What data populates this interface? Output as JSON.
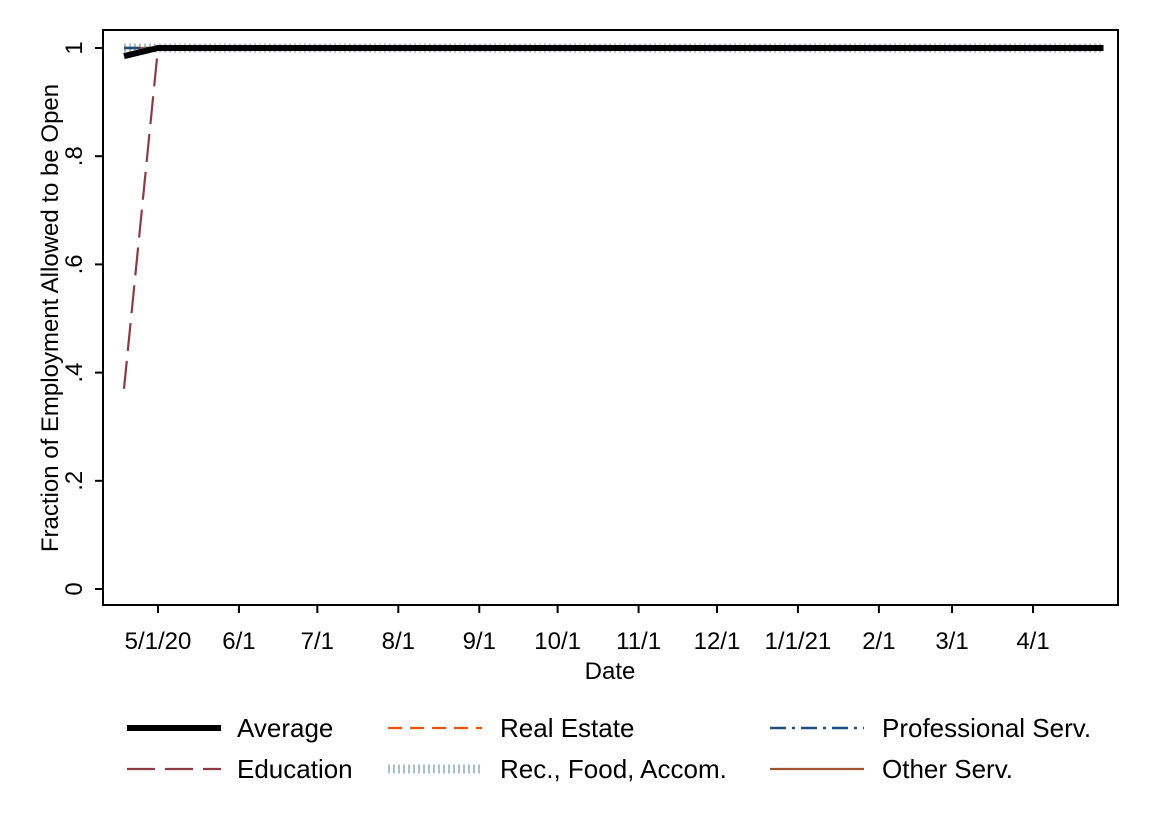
{
  "chart_data": {
    "type": "line",
    "xlabel": "Date",
    "ylabel": "Fraction of Employment Allowed to be Open",
    "ylim": [
      0,
      1
    ],
    "yticks": [
      {
        "value": 0,
        "label": "0"
      },
      {
        "value": 0.2,
        "label": ".2"
      },
      {
        "value": 0.4,
        "label": ".4"
      },
      {
        "value": 0.6,
        "label": ".6"
      },
      {
        "value": 0.8,
        "label": ".8"
      },
      {
        "value": 1,
        "label": "1"
      }
    ],
    "xlim": [
      "2020-04-17",
      "2021-04-30"
    ],
    "xticks": [
      {
        "date": "2020-05-01",
        "label": "5/1/20"
      },
      {
        "date": "2020-06-01",
        "label": "6/1"
      },
      {
        "date": "2020-07-01",
        "label": "7/1"
      },
      {
        "date": "2020-08-01",
        "label": "8/1"
      },
      {
        "date": "2020-09-01",
        "label": "9/1"
      },
      {
        "date": "2020-10-01",
        "label": "10/1"
      },
      {
        "date": "2020-11-01",
        "label": "11/1"
      },
      {
        "date": "2020-12-01",
        "label": "12/1"
      },
      {
        "date": "2021-01-01",
        "label": "1/1/21"
      },
      {
        "date": "2021-02-01",
        "label": "2/1"
      },
      {
        "date": "2021-03-01",
        "label": "3/1"
      },
      {
        "date": "2021-04-01",
        "label": "4/1"
      }
    ],
    "grid": false,
    "legend_position": "bottom",
    "series": [
      {
        "name": "Average",
        "color": "#000000",
        "dash": "solid-thick",
        "points": [
          {
            "x": "2020-04-18",
            "y": 0.985
          },
          {
            "x": "2020-05-01",
            "y": 1.0
          },
          {
            "x": "2021-04-28",
            "y": 1.0
          }
        ]
      },
      {
        "name": "Real Estate",
        "color": "#e8540f",
        "dash": "dashed",
        "points": [
          {
            "x": "2020-04-18",
            "y": 1.0
          },
          {
            "x": "2021-04-28",
            "y": 1.0
          }
        ]
      },
      {
        "name": "Professional Serv.",
        "color": "#1f4e79",
        "dash": "dash-dot",
        "points": [
          {
            "x": "2020-04-18",
            "y": 1.0
          },
          {
            "x": "2021-04-28",
            "y": 1.0
          }
        ]
      },
      {
        "name": "Education",
        "color": "#8c3a45",
        "dash": "long-dash",
        "points": [
          {
            "x": "2020-04-18",
            "y": 0.37
          },
          {
            "x": "2020-05-01",
            "y": 1.0
          },
          {
            "x": "2021-04-28",
            "y": 1.0
          }
        ]
      },
      {
        "name": "Rec., Food, Accom.",
        "color": "#a9c1c4",
        "dash": "shortdot",
        "points": [
          {
            "x": "2020-04-18",
            "y": 1.0
          },
          {
            "x": "2021-04-28",
            "y": 1.0
          }
        ]
      },
      {
        "name": "Other Serv.",
        "color": "#a0522d",
        "dash": "solid",
        "points": [
          {
            "x": "2020-04-18",
            "y": 1.0
          },
          {
            "x": "2021-04-28",
            "y": 1.0
          }
        ]
      }
    ]
  }
}
